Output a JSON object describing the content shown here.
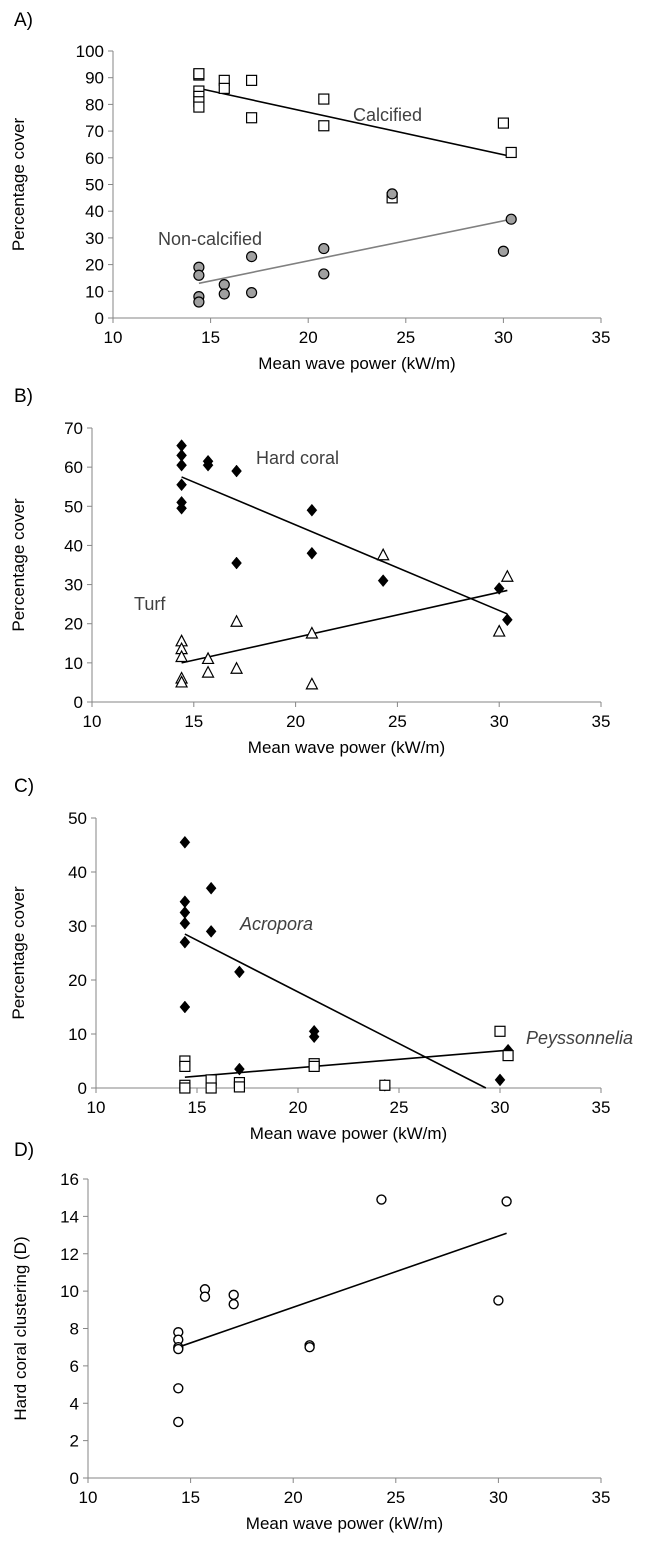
{
  "chart_data": [
    {
      "type": "scatter",
      "panel_label": "A)",
      "xlabel": "Mean wave power (kW/m)",
      "ylabel": "Percentage cover",
      "xlim": [
        10,
        35
      ],
      "ylim": [
        0,
        100
      ],
      "xticks": [
        10,
        15,
        20,
        25,
        30,
        35
      ],
      "yticks": [
        0,
        10,
        20,
        30,
        40,
        50,
        60,
        70,
        80,
        90,
        100
      ],
      "grid": false,
      "series": [
        {
          "name": "Calcified",
          "marker": "open-square",
          "color": "#000000",
          "points": [
            [
              14.4,
              91
            ],
            [
              14.4,
              91.5
            ],
            [
              14.4,
              85
            ],
            [
              14.4,
              83
            ],
            [
              14.4,
              81
            ],
            [
              14.4,
              79
            ],
            [
              15.7,
              89
            ],
            [
              15.7,
              86
            ],
            [
              17.1,
              89
            ],
            [
              17.1,
              75
            ],
            [
              20.8,
              82
            ],
            [
              20.8,
              72
            ],
            [
              24.3,
              45
            ],
            [
              30.0,
              73
            ],
            [
              30.4,
              62
            ]
          ],
          "trendline": [
            [
              14.4,
              86
            ],
            [
              30.4,
              60.5
            ]
          ]
        },
        {
          "name": "Non-calcified",
          "marker": "filled-circle",
          "color": "#a0a0a0",
          "points": [
            [
              14.4,
              19
            ],
            [
              14.4,
              16
            ],
            [
              14.4,
              8
            ],
            [
              14.4,
              6
            ],
            [
              15.7,
              12.5
            ],
            [
              15.7,
              9
            ],
            [
              17.1,
              23
            ],
            [
              17.1,
              9.5
            ],
            [
              20.8,
              26
            ],
            [
              20.8,
              16.5
            ],
            [
              24.3,
              46.5
            ],
            [
              30.0,
              25
            ],
            [
              30.4,
              37
            ]
          ],
          "trendline": [
            [
              14.4,
              13
            ],
            [
              30.4,
              37
            ]
          ]
        }
      ]
    },
    {
      "type": "scatter",
      "panel_label": "B)",
      "xlabel": "Mean wave power (kW/m)",
      "ylabel": "Percentage cover",
      "xlim": [
        10,
        35
      ],
      "ylim": [
        0,
        70
      ],
      "xticks": [
        10,
        15,
        20,
        25,
        30,
        35
      ],
      "yticks": [
        0,
        10,
        20,
        30,
        40,
        50,
        60,
        70
      ],
      "grid": false,
      "series": [
        {
          "name": "Hard coral",
          "marker": "filled-diamond",
          "color": "#000000",
          "points": [
            [
              14.4,
              65.5
            ],
            [
              14.4,
              63
            ],
            [
              14.4,
              60.5
            ],
            [
              14.4,
              55.5
            ],
            [
              14.4,
              51
            ],
            [
              14.4,
              49.5
            ],
            [
              15.7,
              61.5
            ],
            [
              15.7,
              60.5
            ],
            [
              17.1,
              59
            ],
            [
              17.1,
              35.5
            ],
            [
              20.8,
              49
            ],
            [
              20.8,
              38
            ],
            [
              24.3,
              31
            ],
            [
              30.0,
              29
            ],
            [
              30.4,
              21
            ]
          ],
          "trendline": [
            [
              14.4,
              57.5
            ],
            [
              30.4,
              22.5
            ]
          ]
        },
        {
          "name": "Turf",
          "marker": "open-triangle",
          "color": "#000000",
          "points": [
            [
              14.4,
              15.5
            ],
            [
              14.4,
              13.5
            ],
            [
              14.4,
              11.5
            ],
            [
              14.4,
              6
            ],
            [
              14.4,
              5
            ],
            [
              15.7,
              11
            ],
            [
              15.7,
              7.5
            ],
            [
              17.1,
              20.5
            ],
            [
              17.1,
              8.5
            ],
            [
              20.8,
              17.5
            ],
            [
              20.8,
              4.5
            ],
            [
              24.3,
              37.5
            ],
            [
              30.0,
              18
            ],
            [
              30.4,
              32
            ]
          ],
          "trendline": [
            [
              14.4,
              10
            ],
            [
              30.4,
              28.5
            ]
          ]
        }
      ]
    },
    {
      "type": "scatter",
      "panel_label": "C)",
      "xlabel": "Mean wave power (kW/m)",
      "ylabel": "Percentage cover",
      "xlim": [
        10,
        35
      ],
      "ylim": [
        0,
        50
      ],
      "xticks": [
        10,
        15,
        20,
        25,
        30,
        35
      ],
      "yticks": [
        0,
        10,
        20,
        30,
        40,
        50
      ],
      "grid": false,
      "series": [
        {
          "name": "Acropora",
          "marker": "filled-diamond",
          "color": "#000000",
          "points": [
            [
              14.4,
              45.5
            ],
            [
              14.4,
              34.5
            ],
            [
              14.4,
              32.5
            ],
            [
              14.4,
              30.5
            ],
            [
              14.4,
              27
            ],
            [
              14.4,
              15
            ],
            [
              15.7,
              37
            ],
            [
              15.7,
              29
            ],
            [
              17.1,
              21.5
            ],
            [
              17.1,
              3.5
            ],
            [
              20.8,
              10.5
            ],
            [
              20.8,
              9.5
            ],
            [
              24.3,
              0.5
            ],
            [
              30.0,
              1.5
            ],
            [
              30.4,
              7
            ]
          ],
          "trendline": [
            [
              14.4,
              28.5
            ],
            [
              29.3,
              0
            ]
          ]
        },
        {
          "name": "Peyssonnelia",
          "marker": "open-square",
          "color": "#000000",
          "points": [
            [
              14.4,
              5
            ],
            [
              14.4,
              4
            ],
            [
              14.4,
              0.5
            ],
            [
              14.4,
              0
            ],
            [
              15.7,
              1.5
            ],
            [
              15.7,
              0
            ],
            [
              17.1,
              1
            ],
            [
              17.1,
              0.2
            ],
            [
              20.8,
              4.5
            ],
            [
              20.8,
              4
            ],
            [
              24.3,
              0.5
            ],
            [
              30.0,
              10.5
            ],
            [
              30.4,
              6
            ]
          ],
          "trendline": [
            [
              14.4,
              2
            ],
            [
              30.4,
              7
            ]
          ]
        }
      ]
    },
    {
      "type": "scatter",
      "panel_label": "D)",
      "xlabel": "Mean wave power (kW/m)",
      "ylabel": "Hard coral clustering (D)",
      "xlim": [
        10,
        35
      ],
      "ylim": [
        0,
        16
      ],
      "xticks": [
        10,
        15,
        20,
        25,
        30,
        35
      ],
      "yticks": [
        0,
        2,
        4,
        6,
        8,
        10,
        12,
        14,
        16
      ],
      "grid": false,
      "series": [
        {
          "name": "",
          "marker": "open-circle",
          "color": "#000000",
          "points": [
            [
              14.4,
              7.8
            ],
            [
              14.4,
              7.4
            ],
            [
              14.4,
              7.0
            ],
            [
              14.4,
              6.9
            ],
            [
              14.4,
              4.8
            ],
            [
              14.4,
              3.0
            ],
            [
              15.7,
              10.1
            ],
            [
              15.7,
              9.7
            ],
            [
              17.1,
              9.8
            ],
            [
              17.1,
              9.3
            ],
            [
              20.8,
              7.1
            ],
            [
              20.8,
              7.0
            ],
            [
              24.3,
              14.9
            ],
            [
              30.0,
              9.5
            ],
            [
              30.4,
              14.8
            ]
          ],
          "trendline": [
            [
              14.4,
              7.0
            ],
            [
              30.4,
              13.1
            ]
          ]
        }
      ]
    }
  ]
}
